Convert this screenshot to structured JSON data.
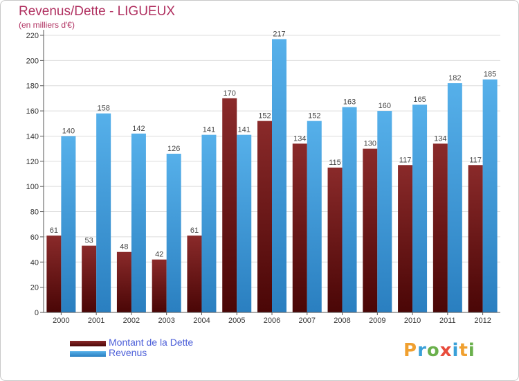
{
  "title": "Revenus/Dette - LIGUEUX",
  "subtitle": "(en milliers d'€)",
  "logo": {
    "letters": [
      "P",
      "r",
      "o",
      "x",
      "i",
      "t",
      "i"
    ],
    "colors": [
      "#f0a030",
      "#3aa0d8",
      "#6ab04c",
      "#e84c3c",
      "#3aa0d8",
      "#f0a030",
      "#6ab04c"
    ]
  },
  "colors": {
    "debt": "#7a1f1f",
    "revenue": "#4aa3e0",
    "title": "#b03060",
    "legend_text": "#4a5dd8"
  },
  "chart_data": {
    "type": "bar",
    "title": "Revenus/Dette - LIGUEUX",
    "subtitle": "(en milliers d'€)",
    "xlabel": "",
    "ylabel": "",
    "categories": [
      "2000",
      "2001",
      "2002",
      "2003",
      "2004",
      "2005",
      "2006",
      "2007",
      "2008",
      "2009",
      "2010",
      "2011",
      "2012"
    ],
    "series": [
      {
        "name": "Montant de la Dette",
        "color": "#7a1f1f",
        "values": [
          61,
          53,
          48,
          42,
          61,
          170,
          152,
          134,
          115,
          130,
          117,
          134,
          117
        ]
      },
      {
        "name": "Revenus",
        "color": "#4aa3e0",
        "values": [
          140,
          158,
          142,
          126,
          141,
          141,
          217,
          152,
          163,
          160,
          165,
          182,
          185
        ]
      }
    ],
    "ylim": [
      0,
      220
    ],
    "yticks": [
      0,
      20,
      40,
      60,
      80,
      100,
      120,
      140,
      160,
      180,
      200,
      220
    ],
    "grid": true,
    "legend": "bottom-left"
  }
}
